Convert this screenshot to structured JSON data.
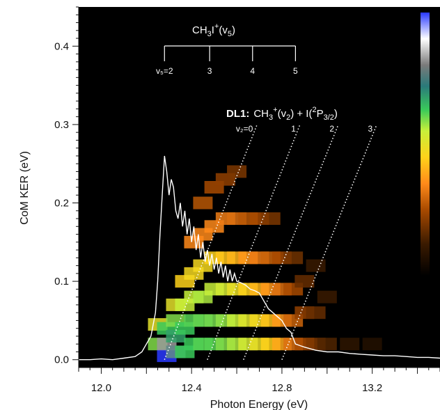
{
  "chart_data": {
    "type": "heatmap",
    "title": "",
    "xlabel": "Photon Energy (eV)",
    "ylabel": "CoM KER (eV)",
    "xlim": [
      11.9,
      13.5
    ],
    "ylim": [
      -0.01,
      0.45
    ],
    "x_ticks": [
      {
        "value": 12.0,
        "label": "12.0"
      },
      {
        "value": 12.4,
        "label": "12.4"
      },
      {
        "value": 12.8,
        "label": "12.8"
      },
      {
        "value": 13.2,
        "label": "13.2"
      }
    ],
    "y_ticks": [
      {
        "value": 0.0,
        "label": "0.0"
      },
      {
        "value": 0.1,
        "label": "0.1"
      },
      {
        "value": 0.2,
        "label": "0.2"
      },
      {
        "value": 0.3,
        "label": "0.3"
      },
      {
        "value": 0.4,
        "label": "0.4"
      }
    ],
    "grid": false,
    "background_color": "#000000",
    "colorscale": [
      "#000000",
      "#3a1a00",
      "#a84a00",
      "#ff8a1a",
      "#ffd21a",
      "#c8f03a",
      "#3aca5a",
      "#2a7a7a",
      "#9a9a9a",
      "#ffffff",
      "#2a3aff"
    ],
    "colorbar_position": "right",
    "heatmap_cells": [
      {
        "x": 12.25,
        "y": 0.02,
        "z": 0.55
      },
      {
        "x": 12.25,
        "y": 0.045,
        "z": 0.45
      },
      {
        "x": 12.29,
        "y": 0.005,
        "z": 1.0
      },
      {
        "x": 12.29,
        "y": 0.02,
        "z": 0.8
      },
      {
        "x": 12.29,
        "y": 0.04,
        "z": 0.6
      },
      {
        "x": 12.33,
        "y": 0.01,
        "z": 0.75
      },
      {
        "x": 12.33,
        "y": 0.03,
        "z": 0.65
      },
      {
        "x": 12.33,
        "y": 0.05,
        "z": 0.55
      },
      {
        "x": 12.33,
        "y": 0.07,
        "z": 0.45
      },
      {
        "x": 12.37,
        "y": 0.01,
        "z": 0.6
      },
      {
        "x": 12.37,
        "y": 0.04,
        "z": 0.6
      },
      {
        "x": 12.37,
        "y": 0.07,
        "z": 0.5
      },
      {
        "x": 12.37,
        "y": 0.1,
        "z": 0.4
      },
      {
        "x": 12.41,
        "y": 0.02,
        "z": 0.6
      },
      {
        "x": 12.41,
        "y": 0.05,
        "z": 0.58
      },
      {
        "x": 12.41,
        "y": 0.08,
        "z": 0.5
      },
      {
        "x": 12.41,
        "y": 0.11,
        "z": 0.42
      },
      {
        "x": 12.41,
        "y": 0.15,
        "z": 0.3
      },
      {
        "x": 12.45,
        "y": 0.02,
        "z": 0.58
      },
      {
        "x": 12.45,
        "y": 0.05,
        "z": 0.57
      },
      {
        "x": 12.45,
        "y": 0.08,
        "z": 0.52
      },
      {
        "x": 12.45,
        "y": 0.12,
        "z": 0.42
      },
      {
        "x": 12.45,
        "y": 0.16,
        "z": 0.3
      },
      {
        "x": 12.45,
        "y": 0.2,
        "z": 0.22
      },
      {
        "x": 12.5,
        "y": 0.02,
        "z": 0.58
      },
      {
        "x": 12.5,
        "y": 0.05,
        "z": 0.56
      },
      {
        "x": 12.5,
        "y": 0.09,
        "z": 0.5
      },
      {
        "x": 12.5,
        "y": 0.13,
        "z": 0.4
      },
      {
        "x": 12.5,
        "y": 0.17,
        "z": 0.3
      },
      {
        "x": 12.5,
        "y": 0.22,
        "z": 0.2
      },
      {
        "x": 12.55,
        "y": 0.02,
        "z": 0.55
      },
      {
        "x": 12.55,
        "y": 0.05,
        "z": 0.54
      },
      {
        "x": 12.55,
        "y": 0.09,
        "z": 0.48
      },
      {
        "x": 12.55,
        "y": 0.13,
        "z": 0.38
      },
      {
        "x": 12.55,
        "y": 0.18,
        "z": 0.28
      },
      {
        "x": 12.55,
        "y": 0.23,
        "z": 0.18
      },
      {
        "x": 12.6,
        "y": 0.02,
        "z": 0.52
      },
      {
        "x": 12.6,
        "y": 0.05,
        "z": 0.5
      },
      {
        "x": 12.6,
        "y": 0.09,
        "z": 0.44
      },
      {
        "x": 12.6,
        "y": 0.13,
        "z": 0.36
      },
      {
        "x": 12.6,
        "y": 0.18,
        "z": 0.26
      },
      {
        "x": 12.6,
        "y": 0.24,
        "z": 0.16
      },
      {
        "x": 12.65,
        "y": 0.02,
        "z": 0.48
      },
      {
        "x": 12.65,
        "y": 0.05,
        "z": 0.46
      },
      {
        "x": 12.65,
        "y": 0.09,
        "z": 0.4
      },
      {
        "x": 12.65,
        "y": 0.13,
        "z": 0.32
      },
      {
        "x": 12.65,
        "y": 0.18,
        "z": 0.22
      },
      {
        "x": 12.7,
        "y": 0.02,
        "z": 0.44
      },
      {
        "x": 12.7,
        "y": 0.05,
        "z": 0.42
      },
      {
        "x": 12.7,
        "y": 0.09,
        "z": 0.36
      },
      {
        "x": 12.7,
        "y": 0.13,
        "z": 0.28
      },
      {
        "x": 12.7,
        "y": 0.18,
        "z": 0.2
      },
      {
        "x": 12.75,
        "y": 0.02,
        "z": 0.4
      },
      {
        "x": 12.75,
        "y": 0.05,
        "z": 0.38
      },
      {
        "x": 12.75,
        "y": 0.09,
        "z": 0.32
      },
      {
        "x": 12.75,
        "y": 0.13,
        "z": 0.24
      },
      {
        "x": 12.75,
        "y": 0.18,
        "z": 0.16
      },
      {
        "x": 12.8,
        "y": 0.02,
        "z": 0.34
      },
      {
        "x": 12.8,
        "y": 0.05,
        "z": 0.32
      },
      {
        "x": 12.8,
        "y": 0.09,
        "z": 0.26
      },
      {
        "x": 12.8,
        "y": 0.13,
        "z": 0.2
      },
      {
        "x": 12.85,
        "y": 0.02,
        "z": 0.26
      },
      {
        "x": 12.85,
        "y": 0.05,
        "z": 0.24
      },
      {
        "x": 12.85,
        "y": 0.09,
        "z": 0.2
      },
      {
        "x": 12.85,
        "y": 0.13,
        "z": 0.15
      },
      {
        "x": 12.9,
        "y": 0.02,
        "z": 0.2
      },
      {
        "x": 12.9,
        "y": 0.06,
        "z": 0.18
      },
      {
        "x": 12.9,
        "y": 0.1,
        "z": 0.14
      },
      {
        "x": 12.95,
        "y": 0.02,
        "z": 0.16
      },
      {
        "x": 12.95,
        "y": 0.06,
        "z": 0.14
      },
      {
        "x": 12.95,
        "y": 0.12,
        "z": 0.1
      },
      {
        "x": 13.0,
        "y": 0.02,
        "z": 0.12
      },
      {
        "x": 13.0,
        "y": 0.08,
        "z": 0.1
      },
      {
        "x": 13.1,
        "y": 0.02,
        "z": 0.08
      },
      {
        "x": 13.2,
        "y": 0.02,
        "z": 0.06
      }
    ],
    "spectrum": {
      "x": [
        11.9,
        11.95,
        12.0,
        12.05,
        12.1,
        12.15,
        12.18,
        12.2,
        12.22,
        12.24,
        12.25,
        12.26,
        12.27,
        12.28,
        12.29,
        12.3,
        12.31,
        12.32,
        12.33,
        12.34,
        12.35,
        12.36,
        12.37,
        12.38,
        12.39,
        12.4,
        12.41,
        12.42,
        12.43,
        12.44,
        12.45,
        12.46,
        12.47,
        12.48,
        12.49,
        12.5,
        12.51,
        12.52,
        12.53,
        12.54,
        12.55,
        12.56,
        12.57,
        12.58,
        12.59,
        12.6,
        12.62,
        12.64,
        12.66,
        12.68,
        12.7,
        12.72,
        12.74,
        12.76,
        12.78,
        12.8,
        12.82,
        12.84,
        12.86,
        12.88,
        12.9,
        12.95,
        13.0,
        13.05,
        13.1,
        13.15,
        13.2,
        13.25,
        13.3,
        13.35,
        13.4,
        13.45,
        13.5
      ],
      "y": [
        0.0,
        0.0,
        0.001,
        0.0,
        0.002,
        0.004,
        0.01,
        0.02,
        0.03,
        0.06,
        0.1,
        0.16,
        0.21,
        0.26,
        0.24,
        0.21,
        0.23,
        0.22,
        0.19,
        0.18,
        0.2,
        0.17,
        0.19,
        0.16,
        0.18,
        0.15,
        0.17,
        0.14,
        0.16,
        0.13,
        0.15,
        0.125,
        0.14,
        0.12,
        0.135,
        0.115,
        0.13,
        0.11,
        0.125,
        0.105,
        0.12,
        0.1,
        0.115,
        0.1,
        0.11,
        0.1,
        0.098,
        0.095,
        0.09,
        0.088,
        0.085,
        0.075,
        0.065,
        0.06,
        0.055,
        0.05,
        0.04,
        0.035,
        0.02,
        0.018,
        0.016,
        0.012,
        0.01,
        0.01,
        0.008,
        0.007,
        0.006,
        0.005,
        0.005,
        0.004,
        0.003,
        0.003,
        0.002
      ]
    },
    "dotted_lines": [
      {
        "label": "v₂=0",
        "x1": 12.28,
        "y1": 0.0,
        "x2": 12.69,
        "y2": 0.3
      },
      {
        "label": "1",
        "x1": 12.47,
        "y1": 0.0,
        "x2": 12.88,
        "y2": 0.3
      },
      {
        "label": "2",
        "x1": 12.63,
        "y1": 0.0,
        "x2": 13.05,
        "y2": 0.3
      },
      {
        "label": "3",
        "x1": 12.8,
        "y1": 0.0,
        "x2": 13.22,
        "y2": 0.3
      }
    ],
    "progression": {
      "label_main": "CH",
      "label_sub": "3",
      "label_rest": "I",
      "label_sup": "+",
      "label_tail": "(v",
      "label_tail_sub": "5",
      "label_end": ")",
      "x_positions": [
        12.28,
        12.48,
        12.67,
        12.86
      ],
      "tick_labels": [
        "v₅=2",
        "3",
        "4",
        "5"
      ]
    },
    "dl1_label": {
      "bold": "DL1:",
      "part1": "CH",
      "part1_sub": "3",
      "part1_sup": "+",
      "part2": "(v",
      "part2_sub": "2",
      "part3": ") + I(",
      "part3_sup": "2",
      "part4": "P",
      "part4_sub": "3/2",
      "part5": ")"
    }
  }
}
